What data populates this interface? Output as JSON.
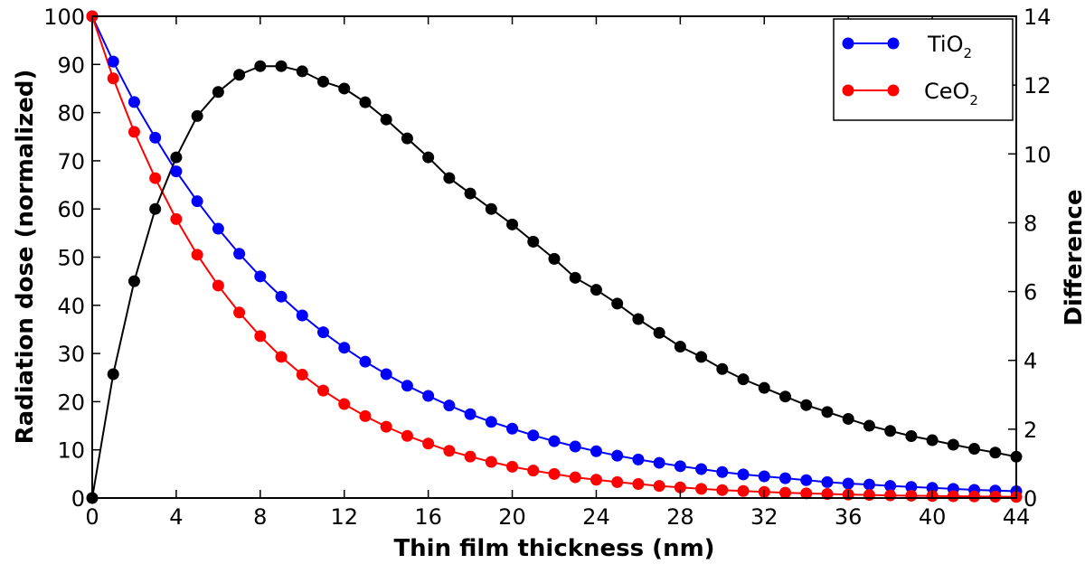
{
  "chart_data": {
    "type": "line",
    "xlabel": "Thin film thickness (nm)",
    "ylabel": "Radiation dose (normalized)",
    "y2label": "Difference",
    "xlim": [
      0,
      44
    ],
    "ylim": [
      0,
      100
    ],
    "y2lim": [
      0,
      14
    ],
    "xticks": [
      "0",
      "4",
      "8",
      "12",
      "16",
      "20",
      "24",
      "28",
      "32",
      "36",
      "40",
      "44"
    ],
    "yticks": [
      "0",
      "10",
      "20",
      "30",
      "40",
      "50",
      "60",
      "70",
      "80",
      "90",
      "100"
    ],
    "y2ticks": [
      "0",
      "2",
      "4",
      "6",
      "8",
      "10",
      "12",
      "14"
    ],
    "legend_position": "top-right",
    "grid": false,
    "x": [
      0,
      1,
      2,
      3,
      4,
      5,
      6,
      7,
      8,
      9,
      10,
      11,
      12,
      13,
      14,
      15,
      16,
      17,
      18,
      19,
      20,
      21,
      22,
      23,
      24,
      25,
      26,
      27,
      28,
      29,
      30,
      31,
      32,
      33,
      34,
      35,
      36,
      37,
      38,
      39,
      40,
      41,
      42,
      43,
      44
    ],
    "series": [
      {
        "name": "TiO2",
        "legend_main": "TiO",
        "legend_sub": "2",
        "color": "#0000ff",
        "axis": "left",
        "values": [
          100,
          90.6,
          82.2,
          74.8,
          67.8,
          61.6,
          55.9,
          50.7,
          46.0,
          41.8,
          37.9,
          34.4,
          31.2,
          28.3,
          25.7,
          23.3,
          21.2,
          19.2,
          17.4,
          15.8,
          14.4,
          13.0,
          11.8,
          10.7,
          9.7,
          8.8,
          8.0,
          7.3,
          6.6,
          6.0,
          5.4,
          4.9,
          4.5,
          4.1,
          3.7,
          3.3,
          3.0,
          2.8,
          2.5,
          2.3,
          2.1,
          1.9,
          1.7,
          1.55,
          1.4
        ]
      },
      {
        "name": "CeO2",
        "legend_main": "CeO",
        "legend_sub": "2",
        "color": "#ff0000",
        "axis": "left",
        "values": [
          100,
          87.1,
          76.0,
          66.4,
          57.9,
          50.5,
          44.1,
          38.5,
          33.6,
          29.3,
          25.6,
          22.3,
          19.5,
          17.0,
          14.8,
          12.9,
          11.3,
          9.8,
          8.6,
          7.5,
          6.5,
          5.7,
          5.0,
          4.3,
          3.8,
          3.3,
          2.9,
          2.5,
          2.2,
          1.9,
          1.65,
          1.45,
          1.26,
          1.1,
          0.96,
          0.84,
          0.73,
          0.64,
          0.55,
          0.48,
          0.42,
          0.37,
          0.32,
          0.28,
          0.24
        ]
      },
      {
        "name": "",
        "color": "#000000",
        "axis": "right",
        "values": [
          0,
          3.6,
          6.3,
          8.4,
          9.9,
          11.1,
          11.8,
          12.3,
          12.55,
          12.55,
          12.4,
          12.1,
          11.9,
          11.5,
          11.0,
          10.45,
          9.9,
          9.3,
          8.85,
          8.4,
          7.95,
          7.45,
          6.95,
          6.4,
          6.05,
          5.65,
          5.2,
          4.8,
          4.4,
          4.1,
          3.75,
          3.45,
          3.2,
          2.95,
          2.7,
          2.5,
          2.3,
          2.1,
          1.95,
          1.8,
          1.68,
          1.55,
          1.43,
          1.32,
          1.2
        ]
      }
    ]
  }
}
